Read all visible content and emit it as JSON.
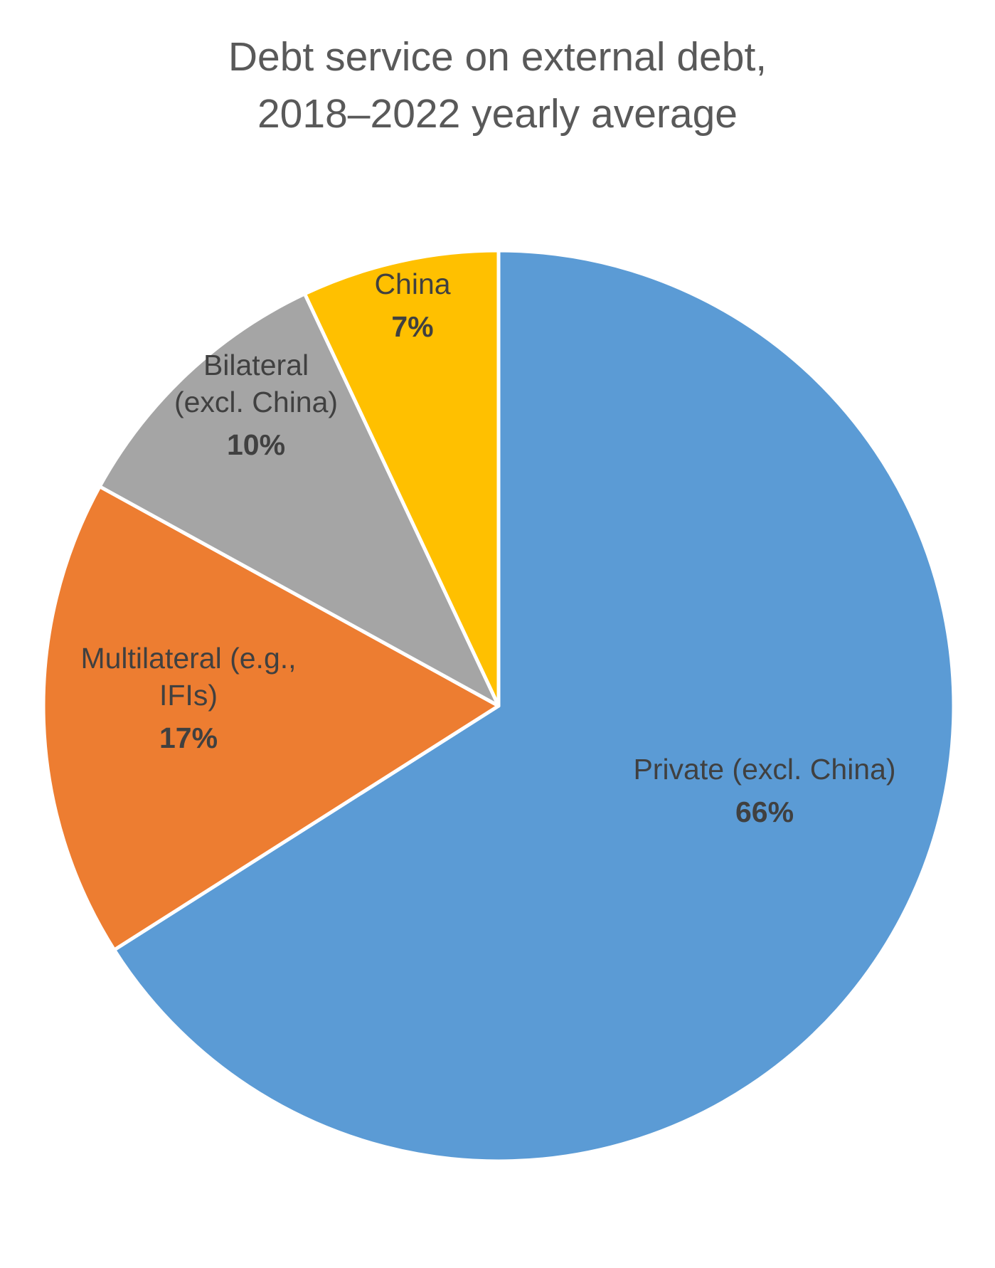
{
  "chart_data": {
    "type": "pie",
    "title": [
      "Debt service on external debt,",
      "2018–2022 yearly average"
    ],
    "slices": [
      {
        "label": [
          "Private (excl. China)"
        ],
        "value": 66,
        "value_text": "66%",
        "color": "#5B9BD5"
      },
      {
        "label": [
          "Multilateral (e.g.,",
          "IFIs)"
        ],
        "value": 17,
        "value_text": "17%",
        "color": "#ED7D31"
      },
      {
        "label": [
          "Bilateral",
          "(excl. China)"
        ],
        "value": 10,
        "value_text": "10%",
        "color": "#A5A5A5"
      },
      {
        "label": [
          "China"
        ],
        "value": 7,
        "value_text": "7%",
        "color": "#FFC000"
      }
    ],
    "start_angle": "12 o'clock",
    "direction": "clockwise",
    "legend": "none",
    "data_labels": "inside"
  }
}
